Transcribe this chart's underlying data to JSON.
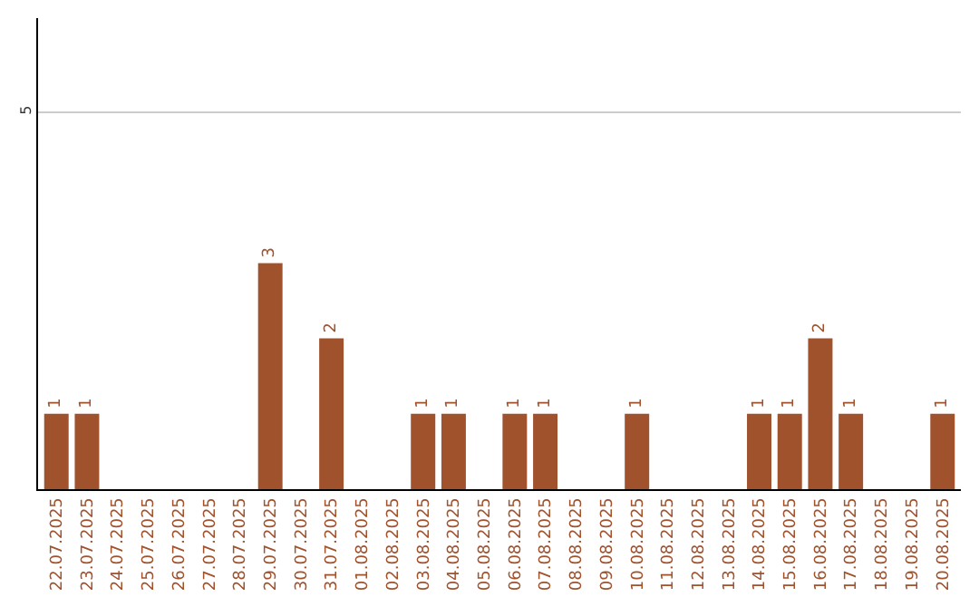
{
  "chart_data": {
    "type": "bar",
    "categories": [
      "22.07.2025",
      "23.07.2025",
      "24.07.2025",
      "25.07.2025",
      "26.07.2025",
      "27.07.2025",
      "28.07.2025",
      "29.07.2025",
      "30.07.2025",
      "31.07.2025",
      "01.08.2025",
      "02.08.2025",
      "03.08.2025",
      "04.08.2025",
      "05.08.2025",
      "06.08.2025",
      "07.08.2025",
      "08.08.2025",
      "09.08.2025",
      "10.08.2025",
      "11.08.2025",
      "12.08.2025",
      "13.08.2025",
      "14.08.2025",
      "15.08.2025",
      "16.08.2025",
      "17.08.2025",
      "18.08.2025",
      "19.08.2025",
      "20.08.2025"
    ],
    "values": [
      1,
      1,
      0,
      0,
      0,
      0,
      0,
      3,
      0,
      2,
      0,
      0,
      1,
      1,
      0,
      1,
      1,
      0,
      0,
      1,
      0,
      0,
      0,
      1,
      1,
      2,
      1,
      0,
      0,
      1
    ],
    "value_labels": [
      "1",
      "1",
      null,
      null,
      null,
      null,
      null,
      "3",
      null,
      "2",
      null,
      null,
      "1",
      "1",
      null,
      "1",
      "1",
      null,
      null,
      "1",
      null,
      null,
      null,
      "1",
      "1",
      "2",
      "1",
      null,
      null,
      "1"
    ],
    "color": "#a0522d",
    "ylim": [
      0,
      6.25
    ],
    "yticks": [
      5
    ],
    "grid": "y"
  }
}
